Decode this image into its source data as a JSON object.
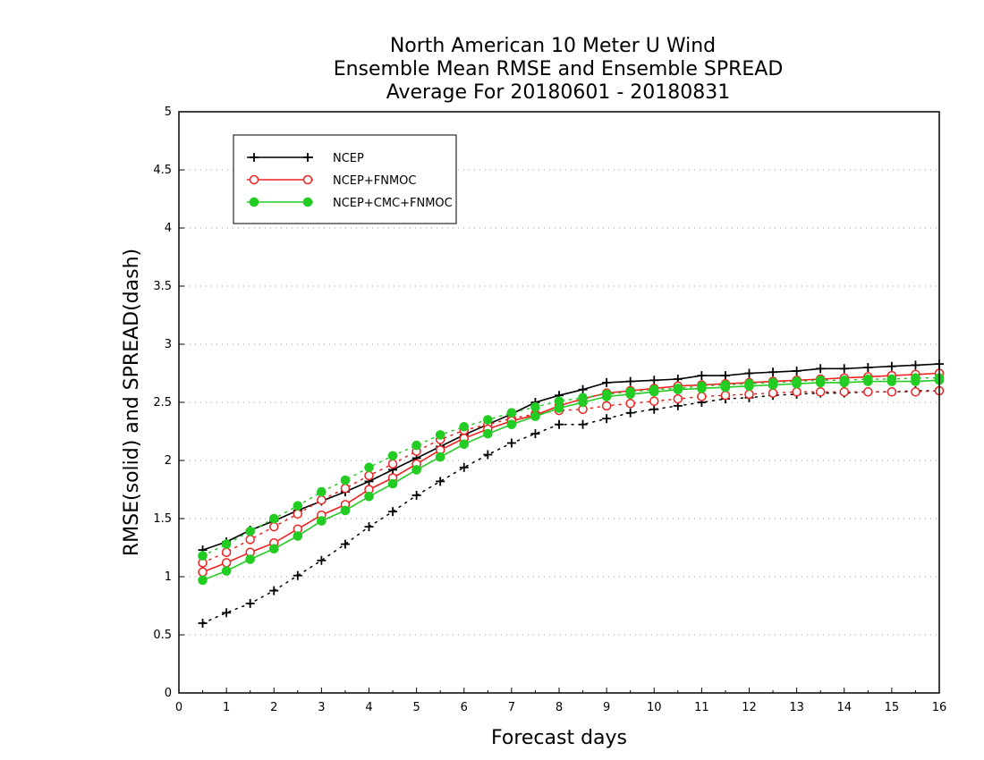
{
  "chart_data": {
    "type": "line",
    "title_lines": [
      "North American 10 Meter U Wind",
      "Ensemble Mean RMSE and Ensemble SPREAD",
      "Average For 20180601 - 20180831"
    ],
    "xlabel": "Forecast days",
    "ylabel": "RMSE(solid) and SPREAD(dash)",
    "xlim": [
      0,
      16
    ],
    "ylim": [
      0,
      5
    ],
    "x_ticks": [
      "0",
      "1",
      "2",
      "3",
      "4",
      "5",
      "6",
      "7",
      "8",
      "9",
      "10",
      "11",
      "12",
      "13",
      "14",
      "15",
      "16"
    ],
    "y_ticks": [
      "0",
      "0.5",
      "1",
      "1.5",
      "2",
      "2.5",
      "3",
      "3.5",
      "4",
      "4.5",
      "5"
    ],
    "grid": true,
    "legend_position": "top-left",
    "x": [
      0.5,
      1,
      1.5,
      2,
      2.5,
      3,
      3.5,
      4,
      4.5,
      5,
      5.5,
      6,
      6.5,
      7,
      7.5,
      8,
      8.5,
      9,
      9.5,
      10,
      10.5,
      11,
      11.5,
      12,
      12.5,
      13,
      13.5,
      14,
      14.5,
      15,
      15.5,
      16
    ],
    "series": [
      {
        "name": "NCEP",
        "color": "#000000",
        "marker": "plus",
        "rmse": [
          1.23,
          1.3,
          1.4,
          1.48,
          1.57,
          1.65,
          1.73,
          1.82,
          1.92,
          2.02,
          2.12,
          2.22,
          2.31,
          2.4,
          2.5,
          2.56,
          2.61,
          2.67,
          2.68,
          2.69,
          2.7,
          2.73,
          2.73,
          2.75,
          2.76,
          2.77,
          2.79,
          2.79,
          2.8,
          2.81,
          2.82,
          2.83
        ],
        "spread": [
          0.6,
          0.69,
          0.77,
          0.88,
          1.01,
          1.14,
          1.28,
          1.43,
          1.56,
          1.7,
          1.82,
          1.94,
          2.05,
          2.15,
          2.23,
          2.31,
          2.31,
          2.36,
          2.41,
          2.44,
          2.47,
          2.5,
          2.53,
          2.54,
          2.56,
          2.57,
          2.58,
          2.58,
          2.59,
          2.59,
          2.6,
          2.6
        ]
      },
      {
        "name": "NCEP+FNMOC",
        "color": "#ee2222",
        "marker": "open-circle",
        "rmse": [
          1.04,
          1.12,
          1.21,
          1.29,
          1.41,
          1.53,
          1.62,
          1.75,
          1.85,
          1.97,
          2.09,
          2.19,
          2.27,
          2.34,
          2.39,
          2.47,
          2.53,
          2.58,
          2.6,
          2.62,
          2.64,
          2.65,
          2.66,
          2.67,
          2.68,
          2.69,
          2.7,
          2.71,
          2.72,
          2.73,
          2.74,
          2.75
        ],
        "spread": [
          1.12,
          1.21,
          1.32,
          1.43,
          1.54,
          1.66,
          1.76,
          1.87,
          1.97,
          2.08,
          2.18,
          2.26,
          2.31,
          2.36,
          2.4,
          2.43,
          2.44,
          2.47,
          2.49,
          2.51,
          2.53,
          2.55,
          2.56,
          2.57,
          2.58,
          2.59,
          2.59,
          2.59,
          2.59,
          2.59,
          2.59,
          2.6
        ]
      },
      {
        "name": "NCEP+CMC+FNMOC",
        "color": "#22cc22",
        "marker": "filled-circle",
        "rmse": [
          0.97,
          1.05,
          1.15,
          1.24,
          1.35,
          1.48,
          1.57,
          1.69,
          1.8,
          1.92,
          2.03,
          2.14,
          2.23,
          2.31,
          2.38,
          2.45,
          2.5,
          2.55,
          2.57,
          2.59,
          2.61,
          2.62,
          2.63,
          2.64,
          2.65,
          2.66,
          2.67,
          2.67,
          2.68,
          2.68,
          2.68,
          2.69
        ],
        "spread": [
          1.18,
          1.28,
          1.39,
          1.5,
          1.61,
          1.73,
          1.83,
          1.94,
          2.04,
          2.13,
          2.22,
          2.29,
          2.35,
          2.41,
          2.46,
          2.51,
          2.54,
          2.57,
          2.59,
          2.61,
          2.62,
          2.64,
          2.65,
          2.66,
          2.67,
          2.68,
          2.69,
          2.69,
          2.7,
          2.7,
          2.71,
          2.71
        ]
      }
    ]
  }
}
